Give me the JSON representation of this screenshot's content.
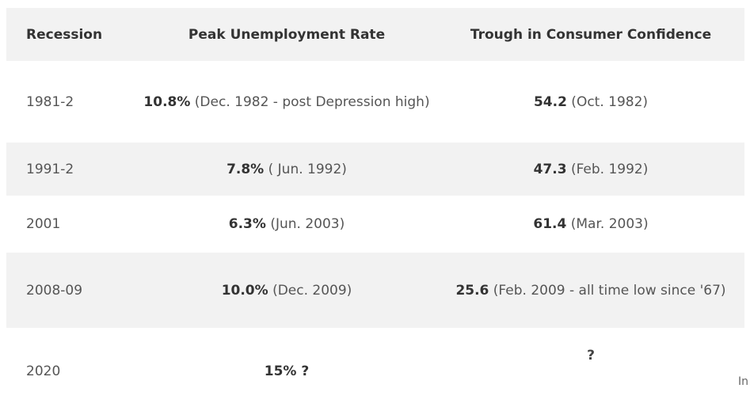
{
  "table": {
    "headers": [
      "Recession",
      "Peak Unemployment Rate",
      "Trough in Consumer Confidence"
    ],
    "rows": [
      {
        "recession": "1981-2",
        "unemployment_value": "10.8%",
        "unemployment_note": " (Dec. 1982 - post Depression high)",
        "confidence_value": "54.2",
        "confidence_note": "  (Oct. 1982)"
      },
      {
        "recession": "1991-2",
        "unemployment_value": "7.8%",
        "unemployment_note": "  ( Jun. 1992)",
        "confidence_value": "47.3",
        "confidence_note": "  (Feb. 1992)"
      },
      {
        "recession": "2001",
        "unemployment_value": "6.3%",
        "unemployment_note": "  (Jun. 2003)",
        "confidence_value": "61.4",
        "confidence_note": "  (Mar. 2003)"
      },
      {
        "recession": "2008-09",
        "unemployment_value": "10.0%",
        "unemployment_note": "  (Dec. 2009)",
        "confidence_value": "25.6",
        "confidence_note": "  (Feb. 2009 - all time low since '67)"
      },
      {
        "recession": "2020",
        "unemployment_value": "15% ?",
        "unemployment_note": "",
        "confidence_value": "?",
        "confidence_note": ""
      }
    ]
  },
  "edge_fragment": "In"
}
